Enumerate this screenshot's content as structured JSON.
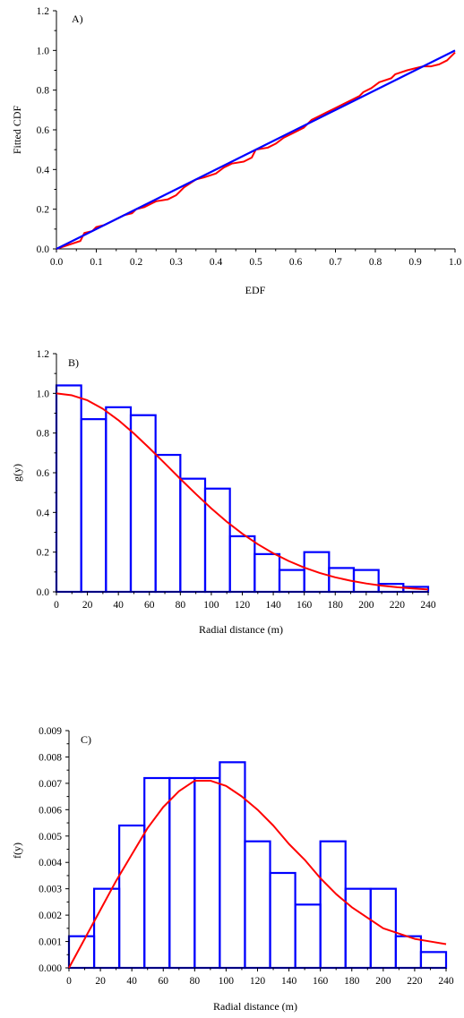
{
  "colors": {
    "histogram": "#0000ff",
    "fitted_curve": "#ff0000",
    "reference_line": "#0000ff",
    "axes": "#000000"
  },
  "chart_data": [
    {
      "panel": "A)",
      "type": "line",
      "xlabel": "EDF",
      "ylabel": "Fitted CDF",
      "xlim": [
        0,
        1
      ],
      "ylim": [
        0,
        1.2
      ],
      "xticks": [
        "0.0",
        "0.1",
        "0.2",
        "0.3",
        "0.4",
        "0.5",
        "0.6",
        "0.7",
        "0.8",
        "0.9",
        "1.0"
      ],
      "yticks": [
        "0.0",
        "0.2",
        "0.4",
        "0.6",
        "0.8",
        "1.0",
        "1.2"
      ],
      "series": [
        {
          "color": "#ff0000",
          "x": [
            0.0,
            0.03,
            0.06,
            0.07,
            0.09,
            0.1,
            0.12,
            0.14,
            0.15,
            0.17,
            0.19,
            0.2,
            0.22,
            0.24,
            0.25,
            0.28,
            0.3,
            0.32,
            0.35,
            0.37,
            0.4,
            0.42,
            0.44,
            0.47,
            0.49,
            0.5,
            0.53,
            0.55,
            0.57,
            0.6,
            0.62,
            0.64,
            0.66,
            0.68,
            0.7,
            0.72,
            0.74,
            0.76,
            0.77,
            0.79,
            0.81,
            0.84,
            0.85,
            0.88,
            0.9,
            0.92,
            0.94,
            0.96,
            0.98,
            1.0
          ],
          "y": [
            0.0,
            0.02,
            0.04,
            0.08,
            0.09,
            0.11,
            0.12,
            0.14,
            0.15,
            0.17,
            0.18,
            0.2,
            0.21,
            0.23,
            0.24,
            0.25,
            0.27,
            0.31,
            0.35,
            0.36,
            0.38,
            0.41,
            0.43,
            0.44,
            0.46,
            0.5,
            0.51,
            0.53,
            0.56,
            0.59,
            0.61,
            0.65,
            0.67,
            0.69,
            0.71,
            0.73,
            0.75,
            0.77,
            0.79,
            0.81,
            0.84,
            0.86,
            0.88,
            0.9,
            0.91,
            0.92,
            0.92,
            0.93,
            0.95,
            0.99
          ]
        },
        {
          "color": "#0000ff",
          "x": [
            0,
            1
          ],
          "y": [
            0,
            1
          ]
        }
      ]
    },
    {
      "panel": "B)",
      "type": "bar",
      "xlabel": "Radial distance (m)",
      "ylabel": "g(y)",
      "xlim": [
        0,
        240
      ],
      "ylim": [
        0,
        1.2
      ],
      "xticks": [
        "0",
        "20",
        "40",
        "60",
        "80",
        "100",
        "120",
        "140",
        "160",
        "180",
        "200",
        "220",
        "240"
      ],
      "yticks": [
        "0.0",
        "0.2",
        "0.4",
        "0.6",
        "0.8",
        "1.0",
        "1.2"
      ],
      "bin_edges": [
        0,
        16,
        32,
        48,
        64,
        80,
        96,
        112,
        128,
        144,
        160,
        176,
        192,
        208,
        224,
        240
      ],
      "values": [
        1.04,
        0.87,
        0.93,
        0.89,
        0.69,
        0.57,
        0.52,
        0.28,
        0.19,
        0.11,
        0.2,
        0.12,
        0.11,
        0.04,
        0.025
      ],
      "curve": {
        "color": "#ff0000",
        "x": [
          0,
          10,
          20,
          30,
          40,
          50,
          60,
          70,
          80,
          90,
          100,
          110,
          120,
          130,
          140,
          150,
          160,
          170,
          180,
          190,
          200,
          210,
          220,
          230,
          240
        ],
        "y": [
          1.0,
          0.99,
          0.965,
          0.922,
          0.865,
          0.798,
          0.724,
          0.647,
          0.569,
          0.493,
          0.42,
          0.353,
          0.293,
          0.24,
          0.194,
          0.155,
          0.122,
          0.095,
          0.073,
          0.056,
          0.042,
          0.031,
          0.023,
          0.017,
          0.012
        ]
      }
    },
    {
      "panel": "C)",
      "type": "bar",
      "xlabel": "Radial distance (m)",
      "ylabel": "f(y)",
      "xlim": [
        0,
        240
      ],
      "ylim": [
        0,
        0.009
      ],
      "xticks": [
        "0",
        "20",
        "40",
        "60",
        "80",
        "100",
        "120",
        "140",
        "160",
        "180",
        "200",
        "220",
        "240"
      ],
      "yticks": [
        "0.000",
        "0.001",
        "0.002",
        "0.003",
        "0.004",
        "0.005",
        "0.006",
        "0.007",
        "0.008",
        "0.009"
      ],
      "bin_edges": [
        0,
        16,
        32,
        48,
        64,
        80,
        96,
        112,
        128,
        144,
        160,
        176,
        192,
        208,
        224,
        240
      ],
      "values": [
        0.0012,
        0.003,
        0.0054,
        0.0072,
        0.0072,
        0.0072,
        0.0078,
        0.0048,
        0.0036,
        0.0024,
        0.0048,
        0.003,
        0.003,
        0.0012,
        0.0006
      ],
      "curve": {
        "color": "#ff0000",
        "x": [
          0,
          10,
          20,
          30,
          40,
          50,
          60,
          70,
          80,
          90,
          100,
          110,
          120,
          130,
          140,
          150,
          160,
          170,
          180,
          190,
          200,
          210,
          220,
          230,
          240
        ],
        "y": [
          0.0,
          0.0011,
          0.0022,
          0.0033,
          0.0043,
          0.0053,
          0.0061,
          0.0067,
          0.0071,
          0.0071,
          0.0069,
          0.0065,
          0.006,
          0.0054,
          0.0047,
          0.0041,
          0.0034,
          0.0028,
          0.0023,
          0.0019,
          0.0015,
          0.0013,
          0.0011,
          0.001,
          0.0009
        ]
      }
    }
  ]
}
